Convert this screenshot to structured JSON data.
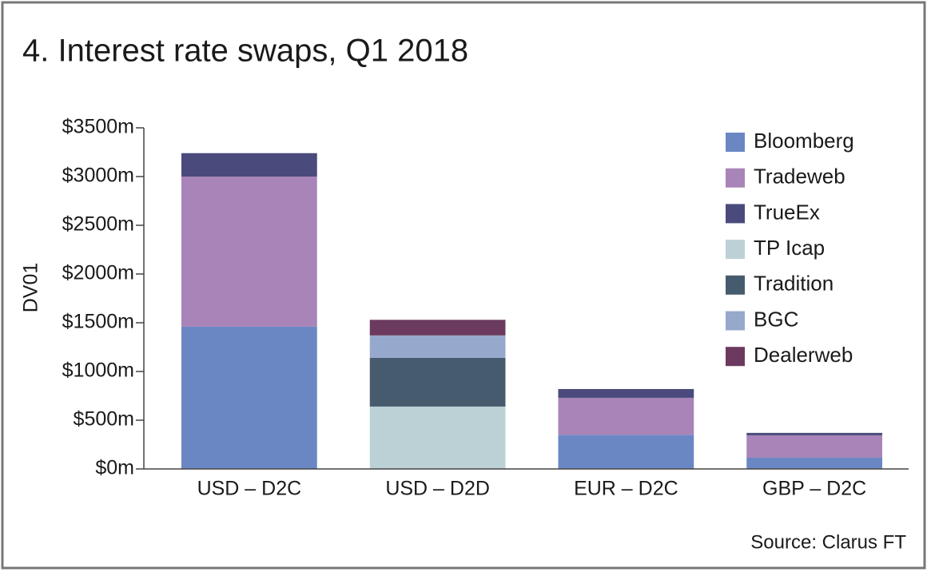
{
  "chart_data": {
    "type": "stacked_bar",
    "title": "4. Interest rate swaps, Q1 2018",
    "y_label": "DV01",
    "source": "Source: Clarus FT",
    "categories": [
      "USD – D2C",
      "USD – D2D",
      "EUR – D2C",
      "GBP – D2C"
    ],
    "series": [
      {
        "name": "Bloomberg",
        "color": "#6a87c4",
        "values": [
          1460,
          null,
          350,
          115
        ]
      },
      {
        "name": "Tradeweb",
        "color": "#a884b8",
        "values": [
          1540,
          null,
          380,
          230
        ]
      },
      {
        "name": "TrueEx",
        "color": "#4a4a7c",
        "values": [
          240,
          null,
          90,
          25
        ]
      },
      {
        "name": "TP Icap",
        "color": "#bcd1d6",
        "values": [
          null,
          640,
          null,
          null
        ]
      },
      {
        "name": "Tradition",
        "color": "#475b6e",
        "values": [
          null,
          500,
          null,
          null
        ]
      },
      {
        "name": "BGC",
        "color": "#96a9cc",
        "values": [
          null,
          230,
          null,
          null
        ]
      },
      {
        "name": "Dealerweb",
        "color": "#6c3a5e",
        "values": [
          null,
          160,
          null,
          null
        ]
      }
    ],
    "ylim": [
      0,
      3500
    ],
    "yticks": [
      {
        "value": 0,
        "label": "$0m"
      },
      {
        "value": 500,
        "label": "$500m"
      },
      {
        "value": 1000,
        "label": "$1000m"
      },
      {
        "value": 1500,
        "label": "$1500m"
      },
      {
        "value": 2000,
        "label": "$2000m"
      },
      {
        "value": 2500,
        "label": "$2500m"
      },
      {
        "value": 3000,
        "label": "$3000m"
      },
      {
        "value": 3500,
        "label": "$3500m"
      }
    ],
    "legend": "top-right"
  }
}
